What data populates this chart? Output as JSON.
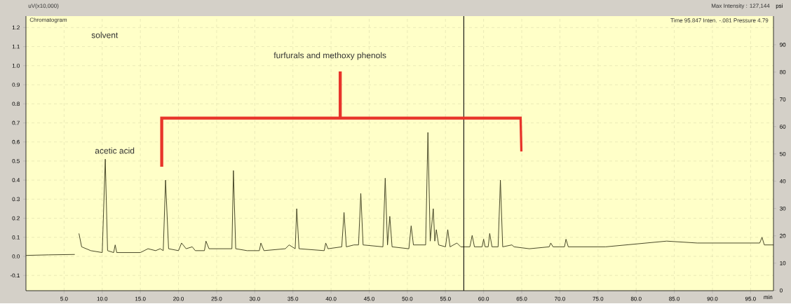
{
  "chart_data": {
    "type": "line",
    "annotations": [
      "uV(x10,000)",
      "Chromatogram",
      "Max Intensity : 127,144",
      "Time 95.847 Inten. -.081 Pressure 4.79",
      "solvent",
      "acetic acid",
      "furfurals and methoxy phenols"
    ],
    "xlabel": "min",
    "y2label": "psi",
    "x": [
      0,
      3,
      6.4,
      6.6,
      6.85,
      6.95,
      7.3,
      8.5,
      10.0,
      10.4,
      10.7,
      11.5,
      11.7,
      11.9,
      15,
      16,
      17,
      17.6,
      18.0,
      18.3,
      18.7,
      20.0,
      20.4,
      21,
      21.8,
      22.2,
      23.4,
      23.6,
      24,
      25,
      26.5,
      27.0,
      27.2,
      27.5,
      29,
      30.6,
      30.8,
      31.2,
      34.0,
      34.5,
      35.3,
      35.5,
      35.8,
      39.1,
      39.3,
      39.6,
      41.4,
      41.7,
      42.0,
      43.0,
      43.6,
      43.9,
      44.2,
      46.8,
      47.1,
      47.4,
      47.7,
      48.0,
      50.2,
      50.5,
      50.8,
      52.4,
      52.7,
      53.0,
      53.4,
      53.6,
      53.8,
      54.1,
      55.0,
      55.3,
      55.6,
      56.5,
      57.0,
      58.2,
      58.5,
      58.8,
      59.8,
      60.0,
      60.2,
      60.6,
      60.8,
      61.1,
      61.9,
      62.2,
      62.5,
      63.7,
      64,
      66,
      68.6,
      68.8,
      69.1,
      70.6,
      70.8,
      71.1,
      73,
      76,
      80,
      84,
      88,
      90,
      93,
      96.2,
      96.5,
      96.8,
      98
    ],
    "series": [
      {
        "color": "#3c3c1e",
        "values": [
          0.005,
          0.008,
          0.01,
          null,
          null,
          0.12,
          0.05,
          0.03,
          0.02,
          0.51,
          0.03,
          0.02,
          0.06,
          0.02,
          0.02,
          0.04,
          0.03,
          0.04,
          0.03,
          0.4,
          0.04,
          0.03,
          0.07,
          0.04,
          0.05,
          0.03,
          0.03,
          0.08,
          0.04,
          0.04,
          0.04,
          0.04,
          0.45,
          0.04,
          0.03,
          0.03,
          0.07,
          0.03,
          0.04,
          0.06,
          0.04,
          0.25,
          0.04,
          0.03,
          0.07,
          0.04,
          0.05,
          0.23,
          0.05,
          0.06,
          0.06,
          0.33,
          0.06,
          0.05,
          0.41,
          0.06,
          0.21,
          0.05,
          0.04,
          0.16,
          0.06,
          0.06,
          0.65,
          0.08,
          0.25,
          0.08,
          0.14,
          0.06,
          0.05,
          0.14,
          0.05,
          0.07,
          0.05,
          0.05,
          0.11,
          0.05,
          0.05,
          0.09,
          0.05,
          0.05,
          0.12,
          0.05,
          0.05,
          0.4,
          0.05,
          0.06,
          0.05,
          0.04,
          0.05,
          0.07,
          0.05,
          0.05,
          0.09,
          0.05,
          0.05,
          0.05,
          0.065,
          0.08,
          0.07,
          0.07,
          0.07,
          0.07,
          0.1,
          0.06,
          0.06
        ]
      }
    ],
    "xlim": [
      0,
      98
    ],
    "ylim": [
      -0.18,
      1.26
    ],
    "y2lim": [
      -0.1,
      100.5
    ],
    "xticks": [
      {
        "value": 5,
        "label": "5.0"
      },
      {
        "value": 10,
        "label": "10.0"
      },
      {
        "value": 15,
        "label": "15.0"
      },
      {
        "value": 20,
        "label": "20.0"
      },
      {
        "value": 25,
        "label": "25.0"
      },
      {
        "value": 30,
        "label": "30.0"
      },
      {
        "value": 35,
        "label": "35.0"
      },
      {
        "value": 40,
        "label": "40.0"
      },
      {
        "value": 45,
        "label": "45.0"
      },
      {
        "value": 50,
        "label": "50.0"
      },
      {
        "value": 55,
        "label": "55.0"
      },
      {
        "value": 60,
        "label": "60.0"
      },
      {
        "value": 65,
        "label": "65.0"
      },
      {
        "value": 70,
        "label": "70.0"
      },
      {
        "value": 75,
        "label": "75.0"
      },
      {
        "value": 80,
        "label": "80.0"
      },
      {
        "value": 85,
        "label": "85.0"
      },
      {
        "value": 90,
        "label": "90.0"
      },
      {
        "value": 95,
        "label": "95.0"
      }
    ],
    "yticks": [
      {
        "value": -0.1,
        "label": "-0.1"
      },
      {
        "value": 0,
        "label": "0.0"
      },
      {
        "value": 0.1,
        "label": "0.1"
      },
      {
        "value": 0.2,
        "label": "0.2"
      },
      {
        "value": 0.3,
        "label": "0.3"
      },
      {
        "value": 0.4,
        "label": "0.4"
      },
      {
        "value": 0.5,
        "label": "0.5"
      },
      {
        "value": 0.6,
        "label": "0.6"
      },
      {
        "value": 0.7,
        "label": "0.7"
      },
      {
        "value": 0.8,
        "label": "0.8"
      },
      {
        "value": 0.9,
        "label": "0.9"
      },
      {
        "value": 1.0,
        "label": "1.0"
      },
      {
        "value": 1.1,
        "label": "1.1"
      },
      {
        "value": 1.2,
        "label": "1.2"
      }
    ],
    "y2ticks": [
      0,
      10,
      20,
      30,
      40,
      50,
      60,
      70,
      80,
      90
    ],
    "ref_lines": [
      {
        "axis": "x",
        "value": 57.4,
        "color": "#000000"
      }
    ],
    "grid": true
  }
}
